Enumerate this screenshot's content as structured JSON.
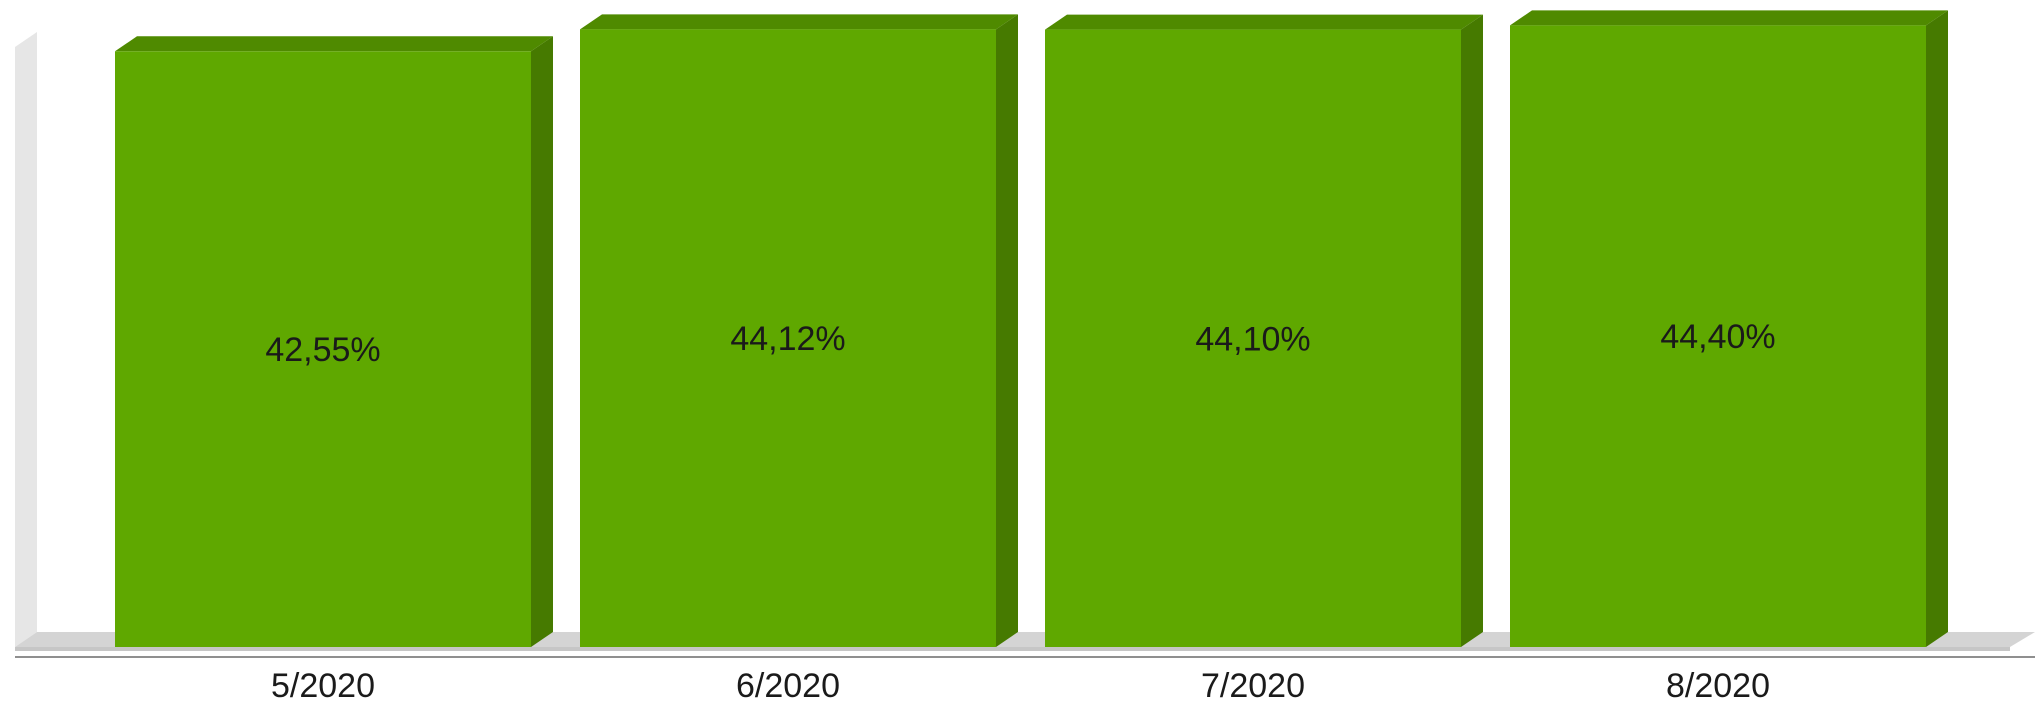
{
  "chart_data": {
    "type": "bar",
    "three_d": true,
    "categories": [
      "5/2020",
      "6/2020",
      "7/2020",
      "8/2020"
    ],
    "values": [
      42.55,
      44.12,
      44.1,
      44.4
    ],
    "value_labels": [
      "42,55%",
      "44,12%",
      "44,10%",
      "44,40%"
    ],
    "ylim": [
      0,
      45.5
    ],
    "grid": false,
    "legend": "none",
    "colors": {
      "bar_front": "#5fa800",
      "bar_side": "#467a00",
      "bar_top": "#4f8a00",
      "floor": "#d4d4d4",
      "back_wall": "#e6e6e6",
      "axis_line": "#8f8f8f"
    }
  }
}
